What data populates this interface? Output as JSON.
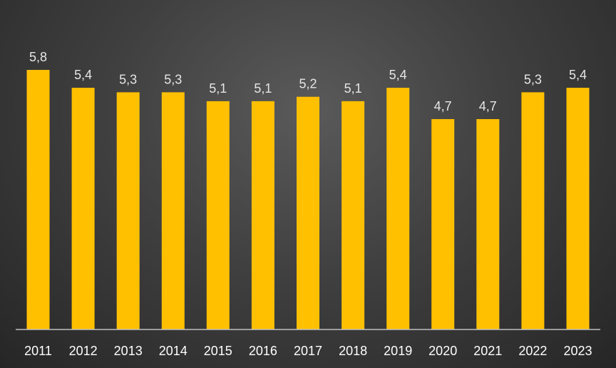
{
  "chart_data": {
    "type": "bar",
    "categories": [
      "2011",
      "2012",
      "2013",
      "2014",
      "2015",
      "2016",
      "2017",
      "2018",
      "2019",
      "2020",
      "2021",
      "2022",
      "2023"
    ],
    "values": [
      5.8,
      5.4,
      5.3,
      5.3,
      5.1,
      5.1,
      5.2,
      5.1,
      5.4,
      4.7,
      4.7,
      5.3,
      5.4
    ],
    "value_labels": [
      "5,8",
      "5,4",
      "5,3",
      "5,3",
      "5,1",
      "5,1",
      "5,2",
      "5,1",
      "5,4",
      "4,7",
      "4,7",
      "5,3",
      "5,4"
    ],
    "title": "",
    "xlabel": "",
    "ylabel": "",
    "ylim": [
      0,
      5.8
    ],
    "grid": false,
    "legend": "none",
    "colors": {
      "bar": "#FFC000",
      "label_text": "#E6E6E6",
      "tick_text": "#FFFFFF",
      "axis_line": "#BFBFBF"
    }
  }
}
